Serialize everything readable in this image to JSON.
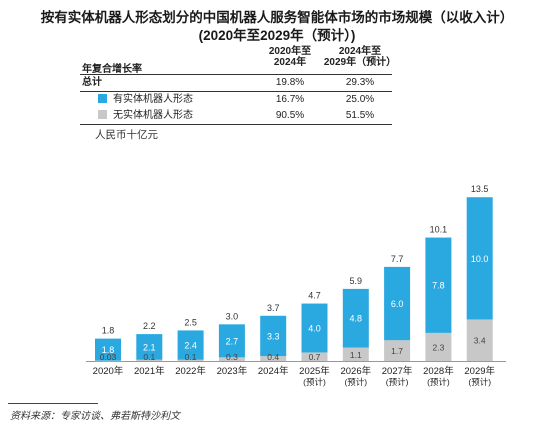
{
  "title_line1": "按有实体机器人形态划分的中国机器人服务智能体市场的市场规模（以收入计）",
  "title_line2": "(2020年至2029年（预计）)",
  "cagr_table": {
    "header_label": "年复合增长率",
    "col1": [
      "2020年至",
      "2024年"
    ],
    "col2": [
      "2024年至",
      "2029年（预计）"
    ],
    "rows": [
      {
        "label": "总计",
        "v1": "19.8%",
        "v2": "29.3%"
      },
      {
        "label": "有实体机器人形态",
        "v1": "16.7%",
        "v2": "25.0%",
        "color": "#2aa8e0"
      },
      {
        "label": "无实体机器人形态",
        "v1": "90.5%",
        "v2": "51.5%",
        "color": "#c8c8c8"
      }
    ]
  },
  "unit_label": "人民币十亿元",
  "source": "资料来源：专家访谈、弗若斯特沙利文",
  "colors": {
    "embodied": "#2aa8e0",
    "non_embodied": "#c8c8c8"
  },
  "chart_data": {
    "type": "bar",
    "stacked": true,
    "categories": [
      [
        "2020年"
      ],
      [
        "2021年"
      ],
      [
        "2022年"
      ],
      [
        "2023年"
      ],
      [
        "2024年"
      ],
      [
        "2025年",
        "(预计)"
      ],
      [
        "2026年",
        "(预计)"
      ],
      [
        "2027年",
        "(预计)"
      ],
      [
        "2028年",
        "(预计)"
      ],
      [
        "2029年",
        "(预计)"
      ]
    ],
    "series": [
      {
        "name": "无实体机器人形态",
        "values": [
          0.03,
          0.1,
          0.1,
          0.3,
          0.4,
          0.7,
          1.1,
          1.7,
          2.3,
          3.4
        ],
        "labels": [
          "0.03",
          "0.1",
          "0.1",
          "0.3",
          "0.4",
          "0.7",
          "1.1",
          "1.7",
          "2.3",
          "3.4"
        ]
      },
      {
        "name": "有实体机器人形态",
        "values": [
          1.8,
          2.1,
          2.4,
          2.7,
          3.3,
          4.0,
          4.8,
          6.0,
          7.8,
          10.0
        ],
        "labels": [
          "1.8",
          "2.1",
          "2.4",
          "2.7",
          "3.3",
          "4.0",
          "4.8",
          "6.0",
          "7.8",
          "10.0"
        ]
      }
    ],
    "totals": [
      1.8,
      2.2,
      2.5,
      3.0,
      3.7,
      4.7,
      5.9,
      7.7,
      10.1,
      13.5
    ],
    "totals_labels": [
      "1.8",
      "2.2",
      "2.5",
      "3.0",
      "3.7",
      "4.7",
      "5.9",
      "7.7",
      "10.1",
      "13.5"
    ],
    "ylim": [
      0,
      13.5
    ]
  }
}
